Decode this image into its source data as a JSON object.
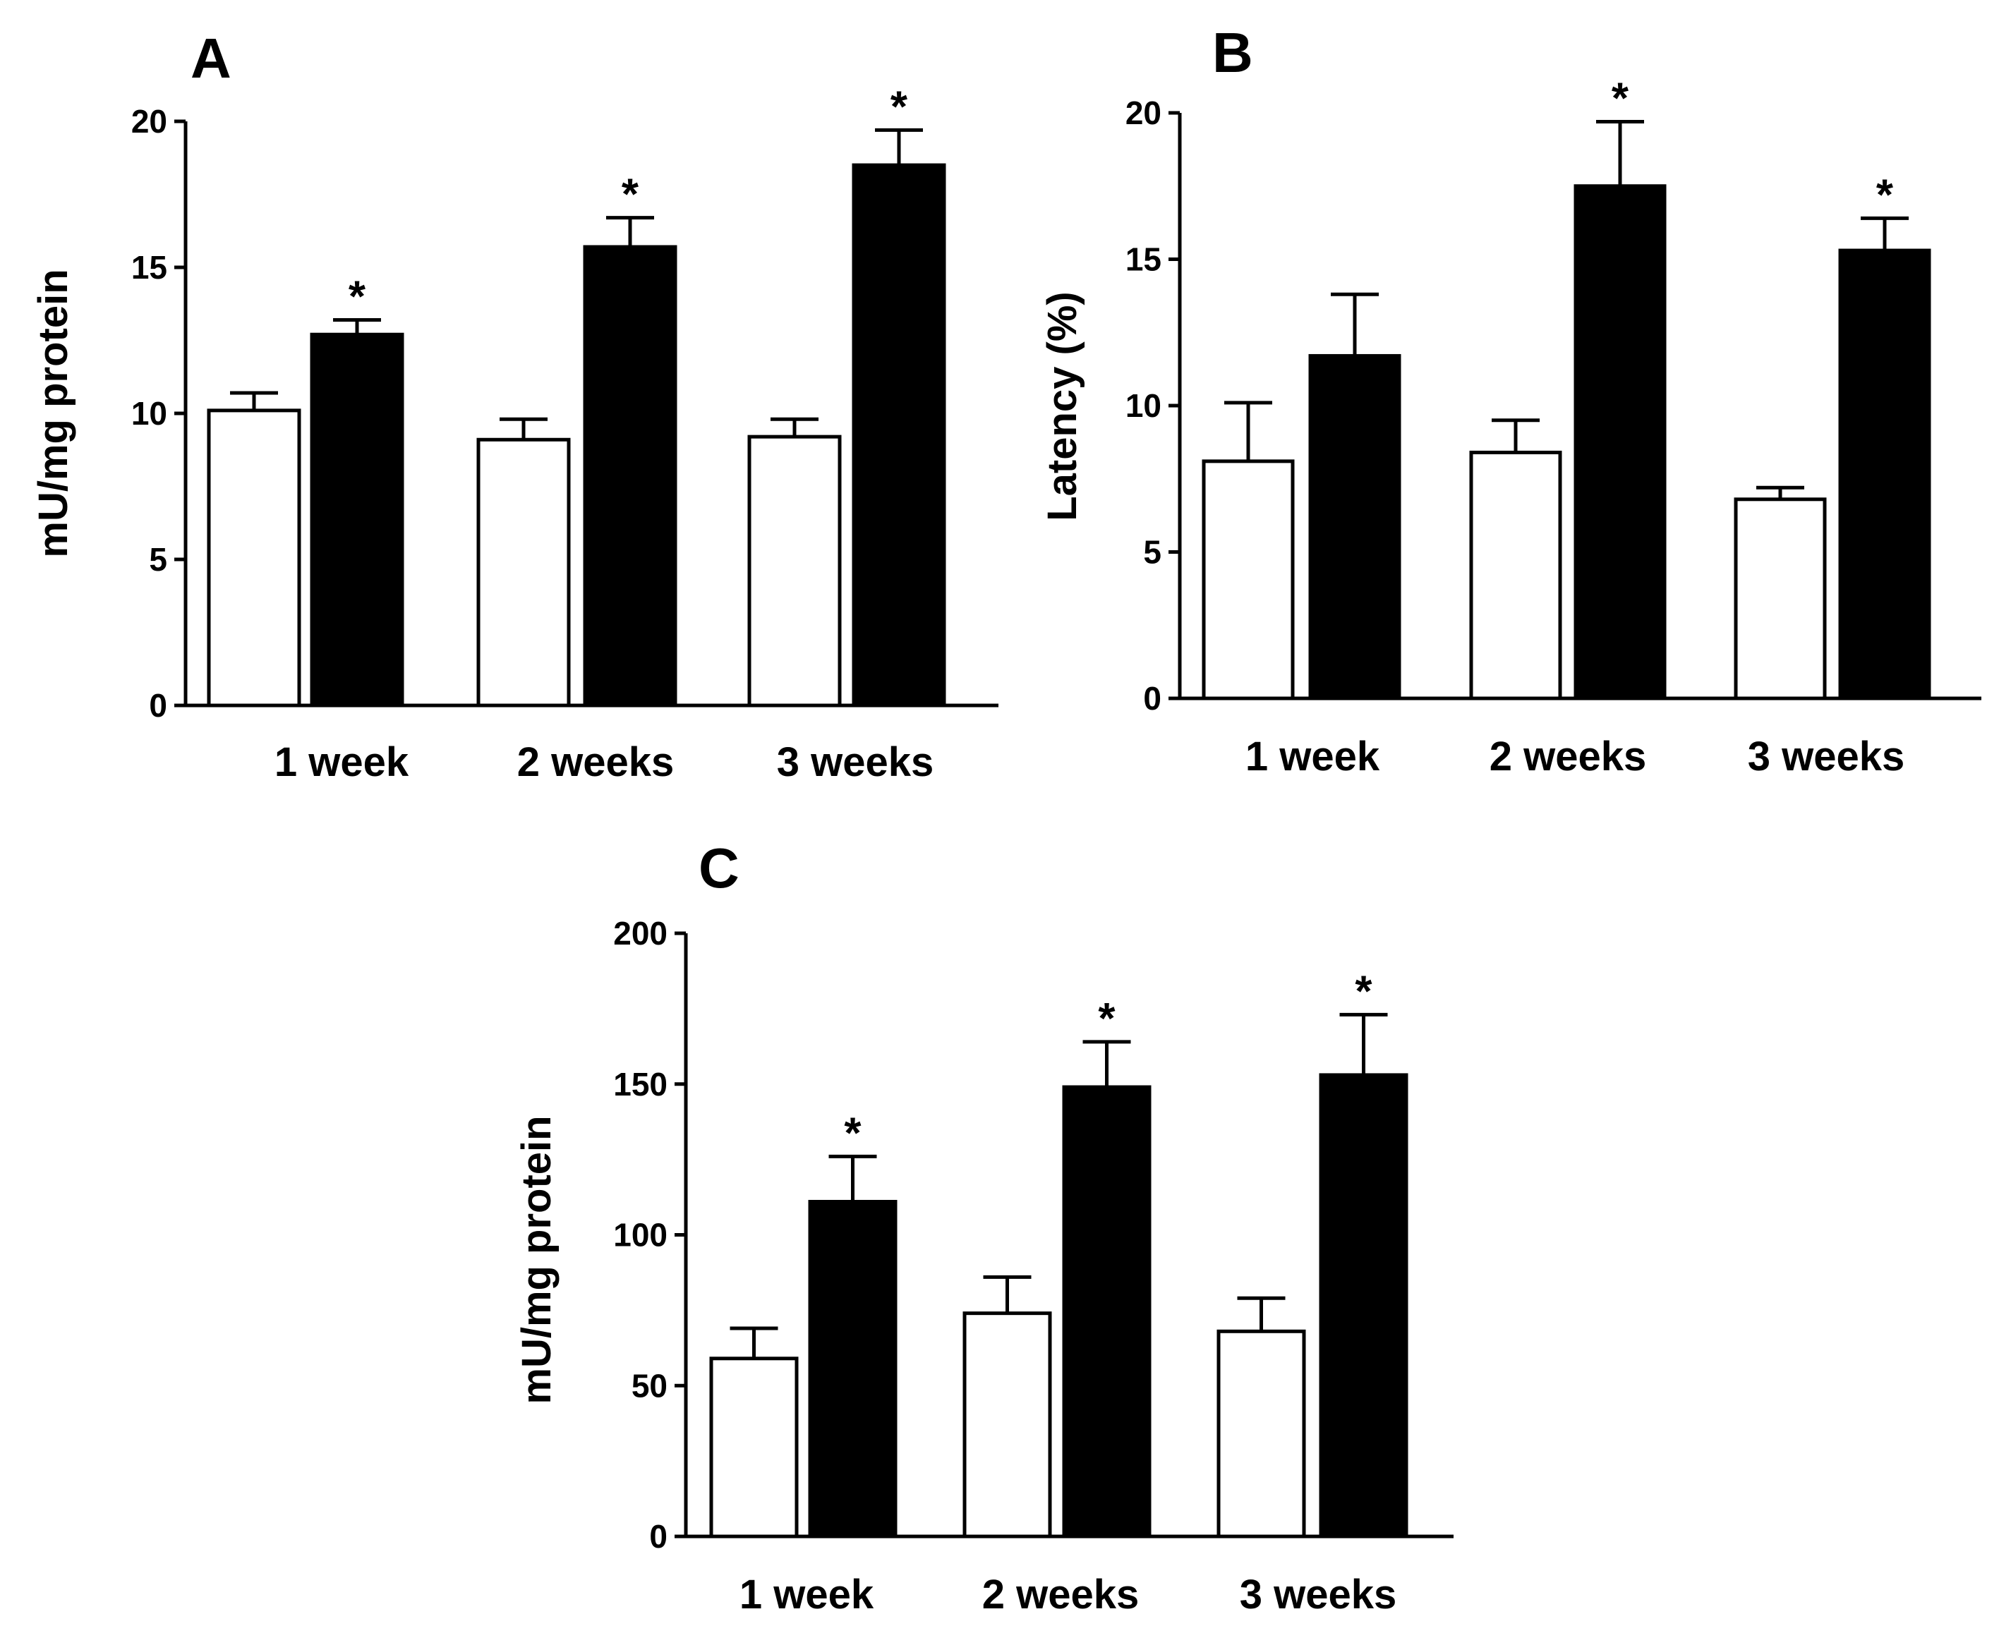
{
  "chart_data": [
    {
      "panel": "A",
      "type": "bar",
      "ylabel": "mU/mg  protein",
      "ylim": [
        0,
        20
      ],
      "yticks": [
        0,
        5,
        10,
        15,
        20
      ],
      "categories": [
        "1 week",
        "2 weeks",
        "3 weeks"
      ],
      "series": [
        {
          "name": "open",
          "fill": "#ffffff",
          "values": [
            10.1,
            9.1,
            9.2
          ],
          "errors": [
            0.6,
            0.7,
            0.6
          ]
        },
        {
          "name": "filled",
          "fill": "#000000",
          "values": [
            12.7,
            15.7,
            18.5
          ],
          "errors": [
            0.5,
            1.0,
            1.2
          ]
        }
      ],
      "significance": [
        [
          false,
          true
        ],
        [
          false,
          true
        ],
        [
          false,
          true
        ]
      ],
      "marker": "*"
    },
    {
      "panel": "B",
      "type": "bar",
      "ylabel": "Latency  (%)",
      "ylim": [
        0,
        20
      ],
      "yticks": [
        0,
        5,
        10,
        15,
        20
      ],
      "categories": [
        "1 week",
        "2 weeks",
        "3 weeks"
      ],
      "series": [
        {
          "name": "open",
          "fill": "#ffffff",
          "values": [
            8.1,
            8.4,
            6.8
          ],
          "errors": [
            2.0,
            1.1,
            0.4
          ]
        },
        {
          "name": "filled",
          "fill": "#000000",
          "values": [
            11.7,
            17.5,
            15.3
          ],
          "errors": [
            2.1,
            2.2,
            1.1
          ]
        }
      ],
      "significance": [
        [
          false,
          false
        ],
        [
          false,
          true
        ],
        [
          false,
          true
        ]
      ],
      "marker": "*"
    },
    {
      "panel": "C",
      "type": "bar",
      "ylabel": "mU/mg  protein",
      "ylim": [
        0,
        200
      ],
      "yticks": [
        0,
        50,
        100,
        150,
        200
      ],
      "categories": [
        "1 week",
        "2 weeks",
        "3 weeks"
      ],
      "series": [
        {
          "name": "open",
          "fill": "#ffffff",
          "values": [
            59,
            74,
            68
          ],
          "errors": [
            10,
            12,
            11
          ]
        },
        {
          "name": "filled",
          "fill": "#000000",
          "values": [
            111,
            149,
            153
          ],
          "errors": [
            15,
            15,
            20
          ]
        }
      ],
      "significance": [
        [
          false,
          true
        ],
        [
          false,
          true
        ],
        [
          false,
          true
        ]
      ],
      "marker": "*"
    }
  ]
}
